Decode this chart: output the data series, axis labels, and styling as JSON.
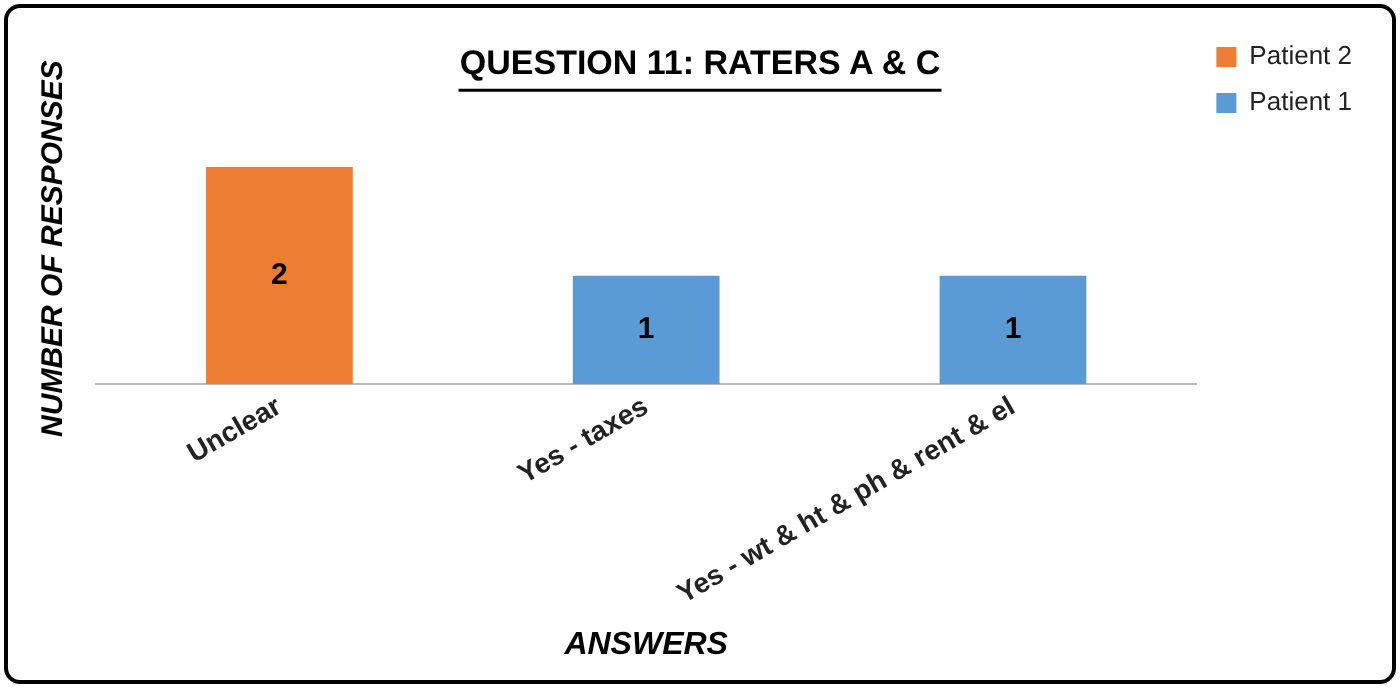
{
  "chart_data": {
    "type": "bar",
    "title": "QUESTION 11: RATERS A & C",
    "xlabel": "ANSWERS",
    "ylabel": "NUMBER OF RESPONSES",
    "categories": [
      "Unclear",
      "Yes - taxes",
      "Yes - wt & ht & ph & rent & el"
    ],
    "series": [
      {
        "name": "Patient 2",
        "color": "#ed7d31",
        "values": [
          2,
          null,
          null
        ]
      },
      {
        "name": "Patient 1",
        "color": "#5b9bd5",
        "values": [
          null,
          1,
          1
        ]
      }
    ],
    "tick_labels": "x",
    "data_labels": true,
    "legend": "top right",
    "grid": false
  }
}
